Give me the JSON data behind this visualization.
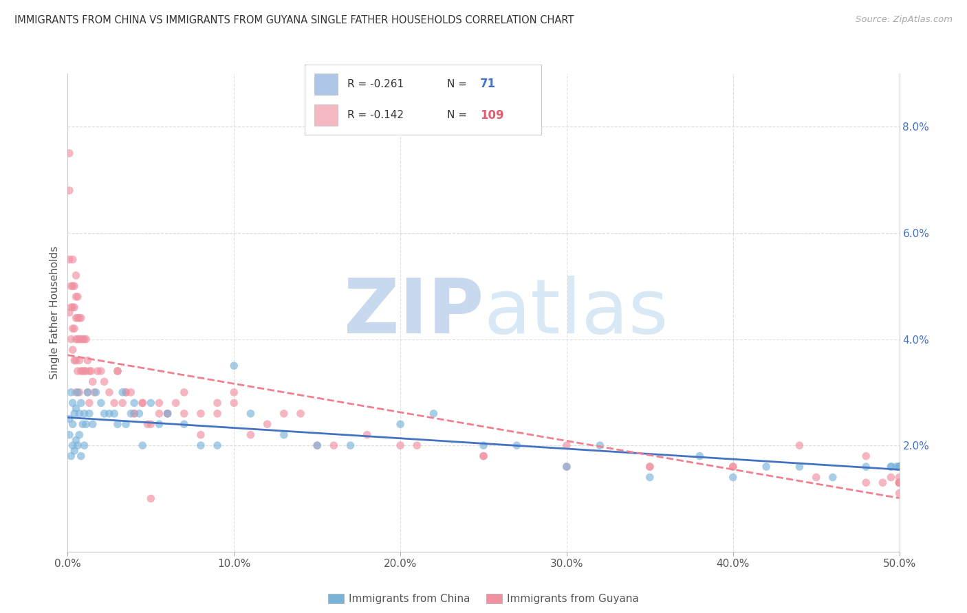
{
  "title": "IMMIGRANTS FROM CHINA VS IMMIGRANTS FROM GUYANA SINGLE FATHER HOUSEHOLDS CORRELATION CHART",
  "source": "Source: ZipAtlas.com",
  "ylabel": "Single Father Households",
  "xlim": [
    0.0,
    0.5
  ],
  "ylim": [
    0.0,
    0.09
  ],
  "xtick_vals": [
    0.0,
    0.1,
    0.2,
    0.3,
    0.4,
    0.5
  ],
  "xtick_labels": [
    "0.0%",
    "10.0%",
    "20.0%",
    "30.0%",
    "40.0%",
    "50.0%"
  ],
  "ytick_vals": [
    0.0,
    0.02,
    0.04,
    0.06,
    0.08
  ],
  "ytick_labels": [
    "",
    "2.0%",
    "4.0%",
    "6.0%",
    "8.0%"
  ],
  "legend_entries": [
    {
      "label": "Immigrants from China",
      "R": "-0.261",
      "N": "71",
      "patch_color": "#aec6e8",
      "n_color": "#4472c4"
    },
    {
      "label": "Immigrants from Guyana",
      "R": "-0.142",
      "N": "109",
      "patch_color": "#f4b8c1",
      "n_color": "#e05c6e"
    }
  ],
  "watermark_zip": "ZIP",
  "watermark_atlas": "atlas",
  "watermark_color": "#ccddf0",
  "background_color": "#ffffff",
  "grid_color": "#dddddd",
  "china_scatter_color": "#7ab3d9",
  "guyana_scatter_color": "#f090a0",
  "china_line_color": "#4472c4",
  "guyana_line_color": "#f08090",
  "china_x": [
    0.001,
    0.001,
    0.002,
    0.002,
    0.003,
    0.003,
    0.003,
    0.004,
    0.004,
    0.005,
    0.005,
    0.006,
    0.006,
    0.007,
    0.007,
    0.008,
    0.008,
    0.009,
    0.01,
    0.01,
    0.011,
    0.012,
    0.013,
    0.015,
    0.017,
    0.02,
    0.022,
    0.025,
    0.028,
    0.03,
    0.033,
    0.035,
    0.038,
    0.04,
    0.043,
    0.045,
    0.05,
    0.055,
    0.06,
    0.07,
    0.08,
    0.09,
    0.1,
    0.11,
    0.13,
    0.15,
    0.17,
    0.2,
    0.22,
    0.25,
    0.27,
    0.3,
    0.32,
    0.35,
    0.38,
    0.4,
    0.42,
    0.44,
    0.46,
    0.48,
    0.495,
    0.495,
    0.498,
    0.5,
    0.5,
    0.5,
    0.5,
    0.5,
    0.5,
    0.5,
    0.5
  ],
  "china_y": [
    0.025,
    0.022,
    0.03,
    0.018,
    0.028,
    0.024,
    0.02,
    0.026,
    0.019,
    0.027,
    0.021,
    0.03,
    0.02,
    0.026,
    0.022,
    0.028,
    0.018,
    0.024,
    0.026,
    0.02,
    0.024,
    0.03,
    0.026,
    0.024,
    0.03,
    0.028,
    0.026,
    0.026,
    0.026,
    0.024,
    0.03,
    0.024,
    0.026,
    0.028,
    0.026,
    0.02,
    0.028,
    0.024,
    0.026,
    0.024,
    0.02,
    0.02,
    0.035,
    0.026,
    0.022,
    0.02,
    0.02,
    0.024,
    0.026,
    0.02,
    0.02,
    0.016,
    0.02,
    0.014,
    0.018,
    0.014,
    0.016,
    0.016,
    0.014,
    0.016,
    0.016,
    0.016,
    0.016,
    0.016,
    0.016,
    0.016,
    0.016,
    0.016,
    0.016,
    0.016,
    0.016
  ],
  "guyana_x": [
    0.001,
    0.001,
    0.001,
    0.001,
    0.002,
    0.002,
    0.002,
    0.003,
    0.003,
    0.003,
    0.003,
    0.003,
    0.004,
    0.004,
    0.004,
    0.004,
    0.005,
    0.005,
    0.005,
    0.005,
    0.005,
    0.005,
    0.006,
    0.006,
    0.006,
    0.006,
    0.007,
    0.007,
    0.007,
    0.007,
    0.008,
    0.008,
    0.008,
    0.009,
    0.009,
    0.01,
    0.01,
    0.011,
    0.011,
    0.012,
    0.012,
    0.013,
    0.013,
    0.014,
    0.015,
    0.016,
    0.018,
    0.02,
    0.022,
    0.025,
    0.028,
    0.03,
    0.033,
    0.035,
    0.038,
    0.04,
    0.045,
    0.048,
    0.05,
    0.055,
    0.06,
    0.065,
    0.07,
    0.08,
    0.09,
    0.1,
    0.11,
    0.13,
    0.15,
    0.18,
    0.21,
    0.25,
    0.3,
    0.35,
    0.4,
    0.44,
    0.48,
    0.49,
    0.5,
    0.5,
    0.5,
    0.03,
    0.035,
    0.04,
    0.045,
    0.05,
    0.055,
    0.06,
    0.07,
    0.08,
    0.09,
    0.1,
    0.12,
    0.14,
    0.16,
    0.2,
    0.25,
    0.3,
    0.35,
    0.4,
    0.45,
    0.48,
    0.495,
    0.5,
    0.5,
    0.5,
    0.5,
    0.5,
    0.5
  ],
  "guyana_y": [
    0.075,
    0.068,
    0.055,
    0.045,
    0.05,
    0.046,
    0.04,
    0.055,
    0.05,
    0.046,
    0.042,
    0.038,
    0.05,
    0.046,
    0.042,
    0.036,
    0.052,
    0.048,
    0.044,
    0.04,
    0.036,
    0.03,
    0.048,
    0.044,
    0.04,
    0.034,
    0.044,
    0.04,
    0.036,
    0.03,
    0.044,
    0.04,
    0.034,
    0.04,
    0.034,
    0.04,
    0.034,
    0.04,
    0.034,
    0.036,
    0.03,
    0.034,
    0.028,
    0.034,
    0.032,
    0.03,
    0.034,
    0.034,
    0.032,
    0.03,
    0.028,
    0.034,
    0.028,
    0.03,
    0.03,
    0.026,
    0.028,
    0.024,
    0.01,
    0.026,
    0.026,
    0.028,
    0.026,
    0.022,
    0.026,
    0.028,
    0.022,
    0.026,
    0.02,
    0.022,
    0.02,
    0.018,
    0.02,
    0.016,
    0.016,
    0.02,
    0.018,
    0.013,
    0.016,
    0.013,
    0.011,
    0.034,
    0.03,
    0.026,
    0.028,
    0.024,
    0.028,
    0.026,
    0.03,
    0.026,
    0.028,
    0.03,
    0.024,
    0.026,
    0.02,
    0.02,
    0.018,
    0.016,
    0.016,
    0.016,
    0.014,
    0.013,
    0.014,
    0.014,
    0.013,
    0.013,
    0.013,
    0.013,
    0.013
  ]
}
